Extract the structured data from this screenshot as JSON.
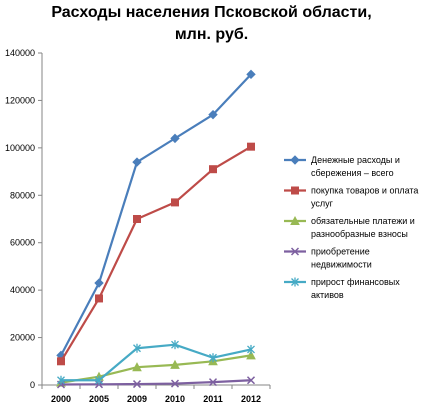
{
  "chart_data": {
    "type": "line",
    "title_lines": [
      "Расходы населения Псковской области,",
      "млн. руб."
    ],
    "x": [
      "2000",
      "2005",
      "2009",
      "2010",
      "2011",
      "2012"
    ],
    "y_ticks": [
      "0",
      "20000",
      "40000",
      "60000",
      "80000",
      "100000",
      "120000",
      "140000"
    ],
    "ylim": [
      0,
      140000
    ],
    "grid": false,
    "legend_position": "right",
    "series": [
      {
        "name_lines": [
          "Денежные расходы и",
          "сбережения – всего"
        ],
        "color": "#4a7ebb",
        "marker": "diamond",
        "values": [
          12500,
          43000,
          94000,
          104000,
          114000,
          131000
        ]
      },
      {
        "name_lines": [
          "покупка товаров и оплата",
          "услуг"
        ],
        "color": "#be4b48",
        "marker": "square",
        "values": [
          10000,
          36500,
          70000,
          77000,
          91000,
          100500
        ]
      },
      {
        "name_lines": [
          "обязательные платежи и",
          "разнообразные  взносы"
        ],
        "color": "#98b954",
        "marker": "triangle",
        "values": [
          1000,
          3500,
          7500,
          8500,
          10000,
          12500
        ]
      },
      {
        "name_lines": [
          "приобретение",
          "недвижимости"
        ],
        "color": "#7d60a0",
        "marker": "x",
        "values": [
          200,
          300,
          400,
          600,
          1200,
          2000
        ]
      },
      {
        "name_lines": [
          "прирост  финансовых",
          "активов"
        ],
        "color": "#46aac5",
        "marker": "star",
        "values": [
          2000,
          2000,
          15500,
          17000,
          11500,
          15000
        ]
      }
    ]
  }
}
